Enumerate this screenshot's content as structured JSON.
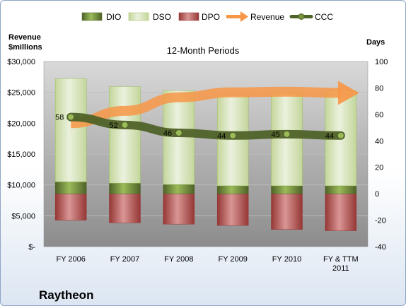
{
  "chart_data": {
    "type": "bar",
    "title": "12-Month Periods",
    "company": "Raytheon",
    "left_axis_label_line1": "Revenue",
    "left_axis_label_line2": "$millions",
    "right_axis_label": "Days",
    "categories": [
      "FY 2006",
      "FY 2007",
      "FY 2008",
      "FY 2009",
      "FY 2010",
      "FY & TTM 2011"
    ],
    "category_lines": [
      [
        "FY 2006"
      ],
      [
        "FY 2007"
      ],
      [
        "FY 2008"
      ],
      [
        "FY 2009"
      ],
      [
        "FY 2010"
      ],
      [
        "FY & TTM",
        "2011"
      ]
    ],
    "left_ylim": [
      0,
      30000
    ],
    "left_ticks": [
      "$-",
      "$5,000",
      "$10,000",
      "$15,000",
      "$20,000",
      "$25,000",
      "$30,000"
    ],
    "right_ylim": [
      -40,
      100
    ],
    "right_ticks": [
      "-40",
      "-20",
      "0",
      "20",
      "40",
      "60",
      "80",
      "100"
    ],
    "legend": [
      "DIO",
      "DSO",
      "DPO",
      "Revenue",
      "CCC"
    ],
    "series": [
      {
        "name": "DIO",
        "axis": "right",
        "values": [
          9,
          8,
          7,
          6,
          6,
          6
        ]
      },
      {
        "name": "DSO",
        "axis": "right",
        "values": [
          78,
          73,
          71,
          68,
          70,
          72
        ]
      },
      {
        "name": "DPO",
        "axis": "right",
        "values": [
          -20,
          -22,
          -23,
          -24,
          -27,
          -28
        ]
      },
      {
        "name": "Revenue",
        "axis": "left",
        "values": [
          20000,
          22000,
          24200,
          25000,
          25100,
          24900
        ]
      },
      {
        "name": "CCC",
        "axis": "right",
        "values": [
          58,
          52,
          46,
          44,
          45,
          44
        ]
      }
    ],
    "ccc_labels": [
      "58",
      "52",
      "46",
      "44",
      "45",
      "44"
    ],
    "colors": {
      "DIO": "#77933c",
      "DSO": "#d7e4bd",
      "DPO": "#c0504d",
      "Revenue": "#f79646",
      "CCC": "#4f6228",
      "plot_bg": "#a6a6a6"
    },
    "grid": true,
    "legend_position": "top"
  }
}
